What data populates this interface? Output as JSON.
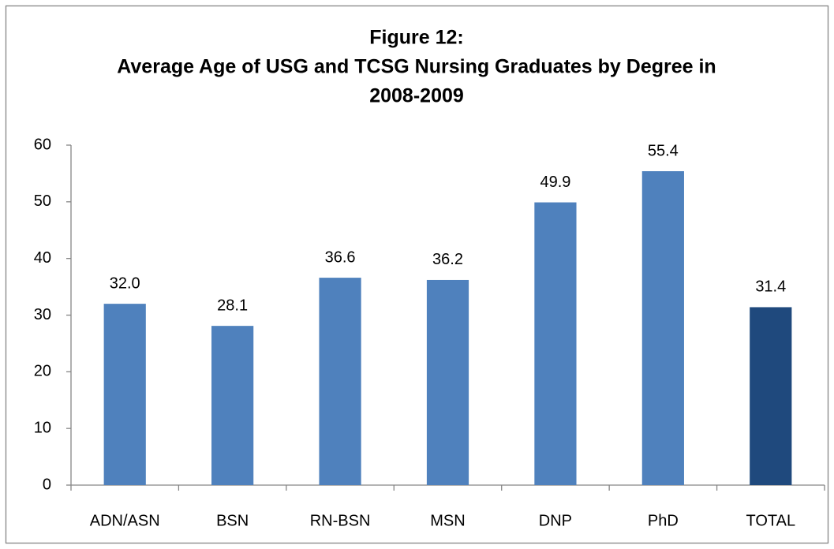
{
  "chart_data": {
    "type": "bar",
    "title": [
      "Figure 12:",
      "Average Age of USG and TCSG Nursing Graduates by Degree in",
      "2008-2009"
    ],
    "categories": [
      "ADN/ASN",
      "BSN",
      "RN-BSN",
      "MSN",
      "DNP",
      "PhD",
      "TOTAL"
    ],
    "values": [
      32.0,
      28.1,
      36.6,
      36.2,
      49.9,
      55.4,
      31.4
    ],
    "value_labels": [
      "32.0",
      "28.1",
      "36.6",
      "36.2",
      "49.9",
      "55.4",
      "31.4"
    ],
    "colors": [
      "#4f81bd",
      "#4f81bd",
      "#4f81bd",
      "#4f81bd",
      "#4f81bd",
      "#4f81bd",
      "#1f497d"
    ],
    "ylim": [
      0,
      60
    ],
    "yticks": [
      0,
      10,
      20,
      30,
      40,
      50,
      60
    ],
    "grid": false
  }
}
